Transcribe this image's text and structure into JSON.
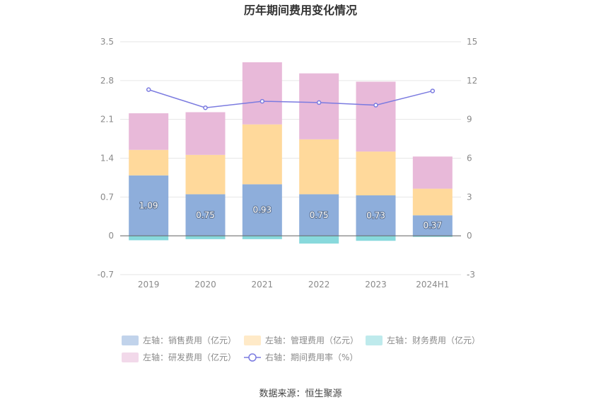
{
  "chart_data": {
    "type": "bar",
    "title": "历年期间费用变化情况",
    "categories": [
      "2019",
      "2020",
      "2021",
      "2022",
      "2023",
      "2024H1"
    ],
    "series": [
      {
        "name": "左轴：销售费用（亿元）",
        "axis": "left",
        "stack": "cost",
        "color": "#8eaedb",
        "values": [
          1.09,
          0.75,
          0.93,
          0.75,
          0.73,
          0.37
        ],
        "show_labels": true
      },
      {
        "name": "左轴：管理费用（亿元）",
        "axis": "left",
        "stack": "cost",
        "color": "#ffd99b",
        "values": [
          0.46,
          0.71,
          1.08,
          0.99,
          0.79,
          0.48
        ],
        "show_labels": false
      },
      {
        "name": "左轴：财务费用（亿元）",
        "axis": "left",
        "stack": "cost",
        "color": "#88d9dc",
        "values": [
          -0.08,
          -0.06,
          -0.06,
          -0.14,
          -0.09,
          -0.02
        ],
        "show_labels": false
      },
      {
        "name": "左轴：研发费用（亿元）",
        "axis": "left",
        "stack": "cost",
        "color": "#e8b9d9",
        "values": [
          0.66,
          0.77,
          1.12,
          1.19,
          1.26,
          0.58
        ],
        "show_labels": false
      }
    ],
    "line_series": {
      "name": "右轴：期间费用率（%）",
      "axis": "right",
      "type": "line",
      "color": "#7b7be0",
      "values": [
        11.3,
        9.9,
        10.4,
        10.3,
        10.1,
        11.2
      ]
    },
    "left_axis": {
      "min": -0.7,
      "max": 3.5,
      "ticks": [
        "-0.7",
        "0",
        "0.7",
        "1.4",
        "2.1",
        "2.8",
        "3.5"
      ],
      "tick_values": [
        -0.7,
        0,
        0.7,
        1.4,
        2.1,
        2.8,
        3.5
      ]
    },
    "right_axis": {
      "min": -3,
      "max": 15,
      "ticks": [
        "-3",
        "0",
        "3",
        "6",
        "9",
        "12",
        "15"
      ],
      "tick_values": [
        -3,
        0,
        3,
        6,
        9,
        12,
        15
      ]
    },
    "grid": true,
    "legend_position": "bottom",
    "source": "数据来源：恒生聚源"
  }
}
